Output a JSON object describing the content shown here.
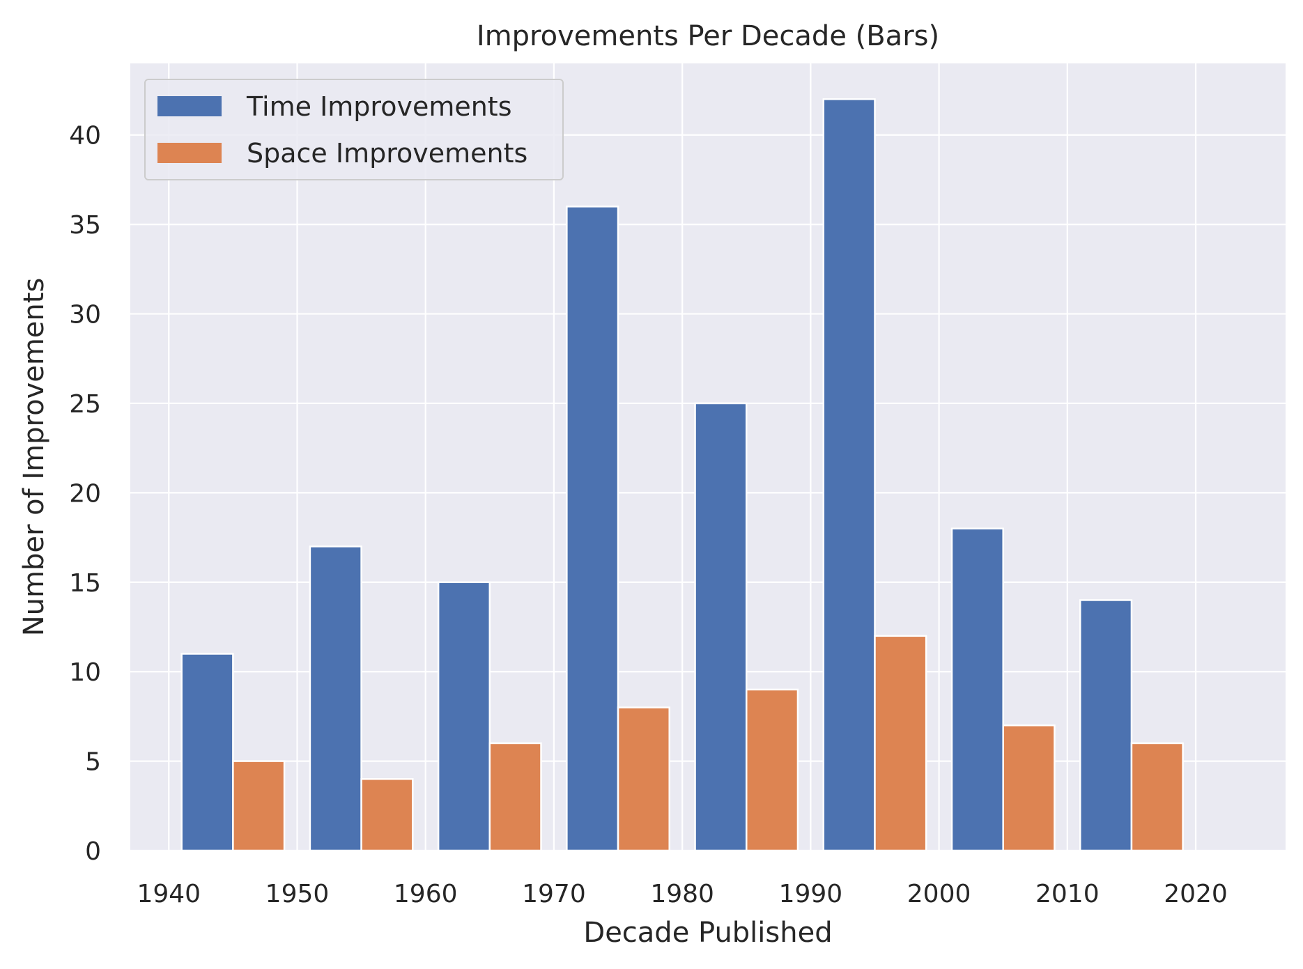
{
  "chart_data": {
    "type": "bar",
    "title": "Improvements Per Decade (Bars)",
    "xlabel": "Decade Published",
    "ylabel": "Number of Improvements",
    "decades": [
      1940,
      1950,
      1960,
      1970,
      1980,
      1990,
      2000,
      2010
    ],
    "series": [
      {
        "name": "Time Improvements",
        "color": "#4c72b0",
        "values": [
          11,
          17,
          15,
          36,
          25,
          42,
          18,
          14
        ]
      },
      {
        "name": "Space Improvements",
        "color": "#dd8452",
        "values": [
          5,
          4,
          6,
          8,
          9,
          12,
          7,
          6
        ]
      }
    ],
    "xlim": [
      1937,
      2027
    ],
    "ylim": [
      0,
      44
    ],
    "xticks": [
      "1940",
      "1950",
      "1960",
      "1970",
      "1980",
      "1990",
      "2000",
      "2010",
      "2020"
    ],
    "yticks": [
      "0",
      "5",
      "10",
      "15",
      "20",
      "25",
      "30",
      "35",
      "40"
    ],
    "grid": true,
    "legend_position": "top-left",
    "background": "#eaeaf2"
  }
}
